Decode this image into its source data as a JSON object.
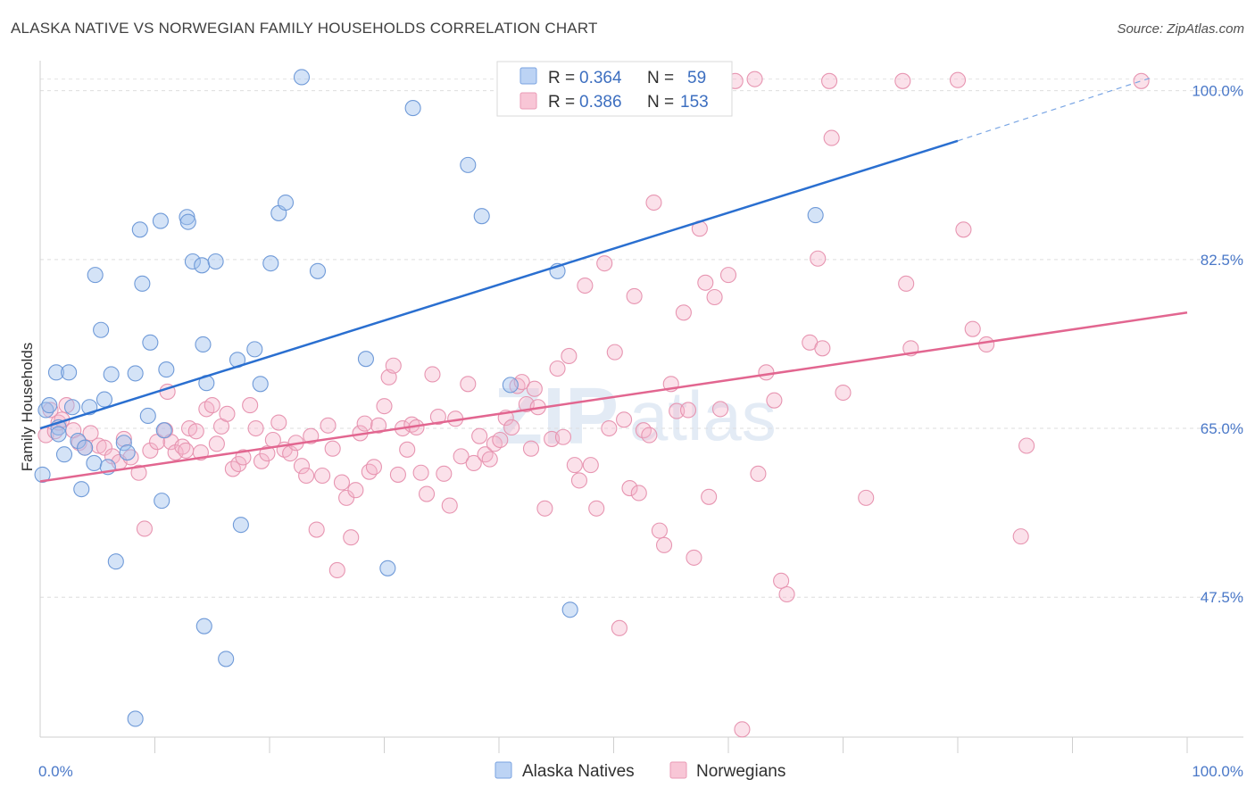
{
  "title": "ALASKA NATIVE VS NORWEGIAN FAMILY HOUSEHOLDS CORRELATION CHART",
  "source": "Source: ZipAtlas.com",
  "watermark": {
    "zip": "ZIP",
    "atlas": "atlas"
  },
  "legend": {
    "rows": [
      {
        "r_label": "R = ",
        "r_value": "0.364",
        "n_label": "N = ",
        "n_value": "59"
      },
      {
        "r_label": "R = ",
        "r_value": "0.386",
        "n_label": "N = ",
        "n_value": "153"
      }
    ]
  },
  "chart_data": {
    "type": "scatter",
    "title": "ALASKA NATIVE VS NORWEGIAN FAMILY HOUSEHOLDS CORRELATION CHART",
    "xlabel": "",
    "ylabel": "Family Households",
    "xlim": [
      0,
      100
    ],
    "ylim": [
      33,
      102
    ],
    "x_tick_labels": [
      "0.0%",
      "100.0%"
    ],
    "y_ticks": [
      47.5,
      65.0,
      82.5,
      100.0
    ],
    "y_tick_labels": [
      "47.5%",
      "65.0%",
      "82.5%",
      "100.0%"
    ],
    "grid": true,
    "colors": {
      "alaska": "#4a86dc",
      "norwegian": "#e97aa0",
      "alaska_line": "#2a6fd0",
      "norwegian_line": "#e26690",
      "tick": "#4a78c8"
    },
    "series": [
      {
        "name": "Alaska Natives",
        "R": 0.364,
        "N": 59,
        "trend": {
          "x0": 0,
          "y0": 65.0,
          "x1": 80,
          "y1": 94.8,
          "dashed_to_x": 97,
          "dashed_to_y": 101.4
        },
        "points": [
          [
            0.2,
            60.2
          ],
          [
            0.5,
            66.9
          ],
          [
            0.8,
            67.4
          ],
          [
            1.4,
            70.8
          ],
          [
            1.6,
            65.1
          ],
          [
            1.6,
            64.4
          ],
          [
            2.1,
            62.3
          ],
          [
            2.5,
            70.8
          ],
          [
            2.8,
            67.2
          ],
          [
            3.3,
            63.7
          ],
          [
            3.6,
            58.7
          ],
          [
            3.9,
            63.0
          ],
          [
            4.3,
            67.2
          ],
          [
            4.7,
            61.4
          ],
          [
            4.8,
            80.9
          ],
          [
            5.3,
            75.2
          ],
          [
            5.6,
            68.0
          ],
          [
            5.9,
            61.0
          ],
          [
            6.2,
            70.6
          ],
          [
            6.6,
            51.2
          ],
          [
            7.3,
            63.5
          ],
          [
            7.6,
            62.5
          ],
          [
            8.3,
            34.9
          ],
          [
            8.3,
            70.7
          ],
          [
            8.7,
            85.6
          ],
          [
            8.9,
            80.0
          ],
          [
            9.4,
            66.3
          ],
          [
            9.6,
            73.9
          ],
          [
            10.5,
            86.5
          ],
          [
            10.6,
            57.5
          ],
          [
            10.8,
            64.8
          ],
          [
            11.0,
            71.1
          ],
          [
            12.8,
            86.9
          ],
          [
            12.9,
            86.4
          ],
          [
            13.3,
            82.3
          ],
          [
            14.1,
            81.9
          ],
          [
            14.2,
            73.7
          ],
          [
            14.3,
            44.5
          ],
          [
            14.5,
            69.7
          ],
          [
            15.3,
            82.3
          ],
          [
            16.2,
            41.1
          ],
          [
            17.2,
            72.1
          ],
          [
            17.5,
            55.0
          ],
          [
            18.7,
            73.2
          ],
          [
            19.2,
            69.6
          ],
          [
            20.1,
            82.1
          ],
          [
            20.8,
            87.3
          ],
          [
            21.4,
            88.4
          ],
          [
            22.8,
            101.4
          ],
          [
            24.2,
            81.3
          ],
          [
            28.4,
            72.2
          ],
          [
            30.3,
            50.5
          ],
          [
            32.5,
            98.2
          ],
          [
            37.3,
            92.3
          ],
          [
            38.5,
            87.0
          ],
          [
            41.0,
            69.5
          ],
          [
            45.1,
            81.3
          ],
          [
            46.2,
            46.2
          ],
          [
            67.6,
            87.1
          ]
        ]
      },
      {
        "name": "Norwegians",
        "R": 0.386,
        "N": 153,
        "trend": {
          "x0": 0,
          "y0": 59.5,
          "x1": 100,
          "y1": 77.0
        },
        "points": [
          [
            0.5,
            64.3
          ],
          [
            0.9,
            66.9
          ],
          [
            1.3,
            64.7
          ],
          [
            1.6,
            65.6
          ],
          [
            1.9,
            65.9
          ],
          [
            2.3,
            67.4
          ],
          [
            2.9,
            64.8
          ],
          [
            3.4,
            63.5
          ],
          [
            3.9,
            63.0
          ],
          [
            4.4,
            64.5
          ],
          [
            5.1,
            63.2
          ],
          [
            5.6,
            63.0
          ],
          [
            6.3,
            62.1
          ],
          [
            6.9,
            61.5
          ],
          [
            7.3,
            63.9
          ],
          [
            7.9,
            62.0
          ],
          [
            8.6,
            60.4
          ],
          [
            9.1,
            54.6
          ],
          [
            9.6,
            62.7
          ],
          [
            10.2,
            63.6
          ],
          [
            10.9,
            64.8
          ],
          [
            11.1,
            68.8
          ],
          [
            11.4,
            63.6
          ],
          [
            11.8,
            62.5
          ],
          [
            12.4,
            63.1
          ],
          [
            12.7,
            62.7
          ],
          [
            13.0,
            65.0
          ],
          [
            13.6,
            64.7
          ],
          [
            14.0,
            62.5
          ],
          [
            14.5,
            67.0
          ],
          [
            15.0,
            67.4
          ],
          [
            15.4,
            63.4
          ],
          [
            15.8,
            65.2
          ],
          [
            16.3,
            66.5
          ],
          [
            16.8,
            60.8
          ],
          [
            17.3,
            61.3
          ],
          [
            17.7,
            62.0
          ],
          [
            18.3,
            67.4
          ],
          [
            18.8,
            65.0
          ],
          [
            19.3,
            61.6
          ],
          [
            19.8,
            62.4
          ],
          [
            20.3,
            63.8
          ],
          [
            20.8,
            65.6
          ],
          [
            21.3,
            62.8
          ],
          [
            21.8,
            62.4
          ],
          [
            22.3,
            63.5
          ],
          [
            22.8,
            61.1
          ],
          [
            23.2,
            60.1
          ],
          [
            23.6,
            64.2
          ],
          [
            24.1,
            54.5
          ],
          [
            24.6,
            60.1
          ],
          [
            25.1,
            65.3
          ],
          [
            25.5,
            62.9
          ],
          [
            25.9,
            50.3
          ],
          [
            26.3,
            59.4
          ],
          [
            26.7,
            57.8
          ],
          [
            27.1,
            53.7
          ],
          [
            27.5,
            58.6
          ],
          [
            27.9,
            64.5
          ],
          [
            28.3,
            65.5
          ],
          [
            28.7,
            60.5
          ],
          [
            29.1,
            61.0
          ],
          [
            29.5,
            65.3
          ],
          [
            30.0,
            67.3
          ],
          [
            30.4,
            70.3
          ],
          [
            30.8,
            71.5
          ],
          [
            31.2,
            60.2
          ],
          [
            31.6,
            65.0
          ],
          [
            32.0,
            62.8
          ],
          [
            32.4,
            65.4
          ],
          [
            32.8,
            65.1
          ],
          [
            33.2,
            60.4
          ],
          [
            33.7,
            58.2
          ],
          [
            34.2,
            70.6
          ],
          [
            34.7,
            66.2
          ],
          [
            35.2,
            60.3
          ],
          [
            35.7,
            57.0
          ],
          [
            36.2,
            66.0
          ],
          [
            36.7,
            62.1
          ],
          [
            37.3,
            69.6
          ],
          [
            37.8,
            61.4
          ],
          [
            38.3,
            64.2
          ],
          [
            38.8,
            62.3
          ],
          [
            39.2,
            61.8
          ],
          [
            39.6,
            63.4
          ],
          [
            40.1,
            63.8
          ],
          [
            40.6,
            66.1
          ],
          [
            41.1,
            65.1
          ],
          [
            41.6,
            69.4
          ],
          [
            42.0,
            69.8
          ],
          [
            42.4,
            67.5
          ],
          [
            42.8,
            62.9
          ],
          [
            43.1,
            69.1
          ],
          [
            43.4,
            67.2
          ],
          [
            44.0,
            56.7
          ],
          [
            44.6,
            63.9
          ],
          [
            45.1,
            71.2
          ],
          [
            45.6,
            64.1
          ],
          [
            46.1,
            72.5
          ],
          [
            46.6,
            61.2
          ],
          [
            47.0,
            59.6
          ],
          [
            47.5,
            79.8
          ],
          [
            48.0,
            61.2
          ],
          [
            48.5,
            56.7
          ],
          [
            49.2,
            82.1
          ],
          [
            49.6,
            65.0
          ],
          [
            50.1,
            72.9
          ],
          [
            50.5,
            44.3
          ],
          [
            50.9,
            65.9
          ],
          [
            51.4,
            58.8
          ],
          [
            51.8,
            78.7
          ],
          [
            52.2,
            58.3
          ],
          [
            52.6,
            64.8
          ],
          [
            53.1,
            64.3
          ],
          [
            53.5,
            88.4
          ],
          [
            54.0,
            54.4
          ],
          [
            54.4,
            52.9
          ],
          [
            55.0,
            69.6
          ],
          [
            55.5,
            66.8
          ],
          [
            56.1,
            77.0
          ],
          [
            56.5,
            66.9
          ],
          [
            57.0,
            51.6
          ],
          [
            57.5,
            85.7
          ],
          [
            58.0,
            80.1
          ],
          [
            58.3,
            57.9
          ],
          [
            58.8,
            78.6
          ],
          [
            59.3,
            67.0
          ],
          [
            60.0,
            80.9
          ],
          [
            60.6,
            101.0
          ],
          [
            62.3,
            101.2
          ],
          [
            62.6,
            60.3
          ],
          [
            63.3,
            70.8
          ],
          [
            64.0,
            67.9
          ],
          [
            64.6,
            49.2
          ],
          [
            65.1,
            47.8
          ],
          [
            67.1,
            73.9
          ],
          [
            67.8,
            82.6
          ],
          [
            68.2,
            73.3
          ],
          [
            68.8,
            101.0
          ],
          [
            69.0,
            95.1
          ],
          [
            70.0,
            68.7
          ],
          [
            72.0,
            57.8
          ],
          [
            75.2,
            101.0
          ],
          [
            75.5,
            80.0
          ],
          [
            75.9,
            73.3
          ],
          [
            80.0,
            101.1
          ],
          [
            80.5,
            85.6
          ],
          [
            81.3,
            75.3
          ],
          [
            82.5,
            73.7
          ],
          [
            85.5,
            53.8
          ],
          [
            86.0,
            63.2
          ],
          [
            96.0,
            101.0
          ],
          [
            61.2,
            33.8
          ]
        ]
      }
    ],
    "bottom_legend": [
      "Alaska Natives",
      "Norwegians"
    ]
  }
}
